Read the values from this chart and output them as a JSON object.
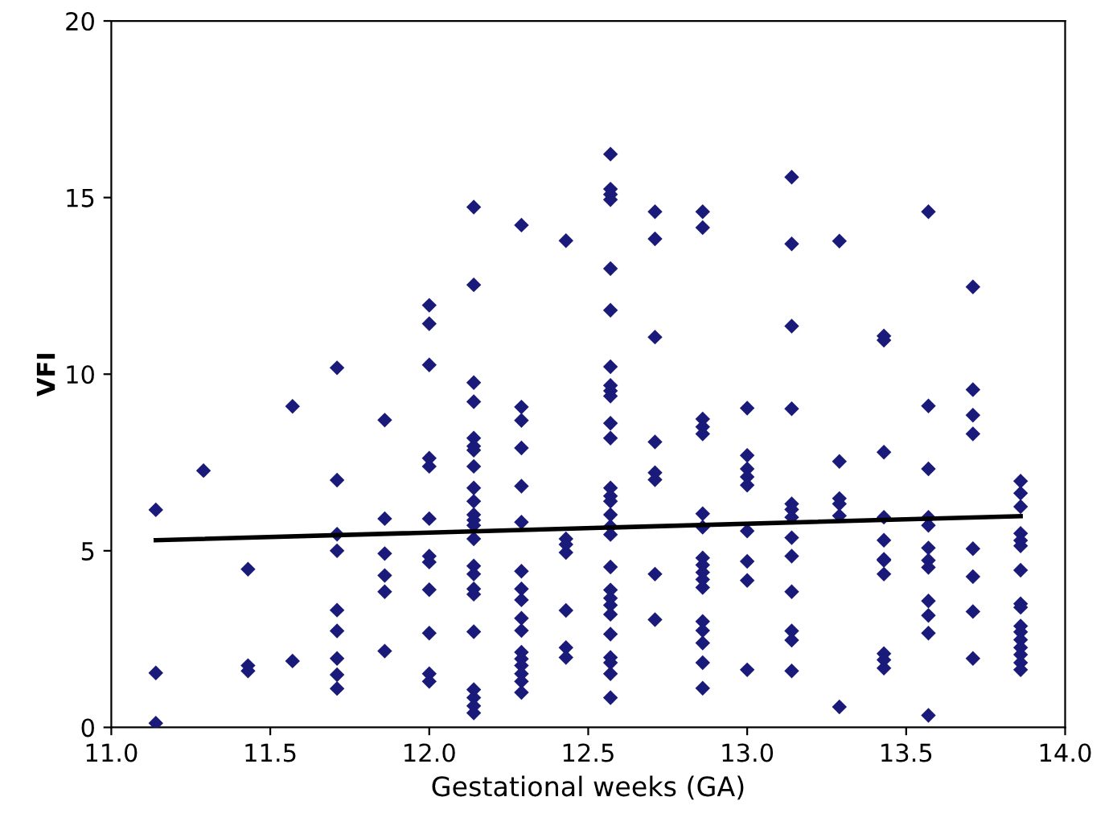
{
  "chart_data": {
    "type": "scatter",
    "xlabel": "Gestational weeks (GA)",
    "ylabel": "VFI",
    "xlim": [
      11.0,
      14.0
    ],
    "ylim": [
      0,
      20
    ],
    "xticks": [
      {
        "value": 11.0,
        "label": "11.0"
      },
      {
        "value": 11.5,
        "label": "11.5"
      },
      {
        "value": 12.0,
        "label": "12.0"
      },
      {
        "value": 12.5,
        "label": "12.5"
      },
      {
        "value": 13.0,
        "label": "13.0"
      },
      {
        "value": 13.5,
        "label": "13.5"
      },
      {
        "value": 14.0,
        "label": "14.0"
      }
    ],
    "yticks": [
      0,
      5,
      10,
      15,
      20
    ],
    "grid": false,
    "legend": false,
    "marker": "diamond",
    "series": [
      {
        "color": "#1a1a7a",
        "x": [
          11.14,
          11.14,
          11.14,
          11.29,
          11.43,
          11.43,
          11.43,
          11.57,
          11.57,
          11.71,
          11.71,
          11.71,
          11.71,
          11.71,
          11.71,
          11.71,
          11.71,
          11.71,
          11.86,
          11.86,
          11.86,
          11.86,
          11.86,
          11.86,
          12.0,
          12.0,
          12.0,
          12.0,
          12.0,
          12.0,
          12.0,
          12.0,
          12.0,
          12.0,
          12.0,
          12.0,
          12.14,
          12.14,
          12.14,
          12.14,
          12.14,
          12.14,
          12.14,
          12.14,
          12.14,
          12.14,
          12.14,
          12.14,
          12.14,
          12.14,
          12.14,
          12.14,
          12.14,
          12.14,
          12.14,
          12.14,
          12.14,
          12.14,
          12.14,
          12.29,
          12.29,
          12.29,
          12.29,
          12.29,
          12.29,
          12.29,
          12.29,
          12.29,
          12.29,
          12.29,
          12.29,
          12.29,
          12.29,
          12.29,
          12.29,
          12.29,
          12.43,
          12.43,
          12.43,
          12.43,
          12.43,
          12.43,
          12.43,
          12.57,
          12.57,
          12.57,
          12.57,
          12.57,
          12.57,
          12.57,
          12.57,
          12.57,
          12.57,
          12.57,
          12.57,
          12.57,
          12.57,
          12.57,
          12.57,
          12.57,
          12.57,
          12.57,
          12.57,
          12.57,
          12.57,
          12.57,
          12.57,
          12.57,
          12.57,
          12.57,
          12.57,
          12.71,
          12.71,
          12.71,
          12.71,
          12.71,
          12.71,
          12.71,
          12.71,
          12.86,
          12.86,
          12.86,
          12.86,
          12.86,
          12.86,
          12.86,
          12.86,
          12.86,
          12.86,
          12.86,
          12.86,
          12.86,
          12.86,
          12.86,
          12.86,
          12.86,
          13.0,
          13.0,
          13.0,
          13.0,
          13.0,
          13.0,
          13.0,
          13.0,
          13.0,
          13.14,
          13.14,
          13.14,
          13.14,
          13.14,
          13.14,
          13.14,
          13.14,
          13.14,
          13.14,
          13.14,
          13.14,
          13.14,
          13.29,
          13.29,
          13.29,
          13.29,
          13.29,
          13.29,
          13.43,
          13.43,
          13.43,
          13.43,
          13.43,
          13.43,
          13.43,
          13.43,
          13.43,
          13.43,
          13.43,
          13.57,
          13.57,
          13.57,
          13.57,
          13.57,
          13.57,
          13.57,
          13.57,
          13.57,
          13.57,
          13.57,
          13.57,
          13.71,
          13.71,
          13.71,
          13.71,
          13.71,
          13.71,
          13.71,
          13.71,
          13.86,
          13.86,
          13.86,
          13.86,
          13.86,
          13.86,
          13.86,
          13.86,
          13.86,
          13.86,
          13.86,
          13.86,
          13.86,
          13.86,
          13.86,
          13.86
        ],
        "values": [
          6.16,
          1.54,
          0.12,
          7.27,
          4.48,
          1.75,
          1.6,
          9.09,
          1.88,
          10.18,
          7.0,
          5.47,
          5.0,
          3.32,
          2.73,
          1.95,
          1.49,
          1.1,
          8.7,
          5.91,
          4.92,
          4.3,
          3.84,
          2.16,
          11.95,
          11.43,
          10.26,
          7.62,
          7.39,
          5.91,
          4.85,
          4.68,
          3.9,
          2.67,
          1.52,
          1.3,
          14.73,
          12.53,
          9.76,
          9.22,
          8.19,
          7.96,
          7.85,
          7.39,
          6.78,
          6.4,
          6.02,
          5.87,
          5.72,
          5.34,
          4.57,
          4.34,
          3.92,
          3.77,
          2.71,
          1.07,
          0.84,
          0.61,
          0.41,
          14.22,
          9.07,
          8.69,
          7.91,
          6.83,
          5.81,
          4.42,
          3.92,
          3.61,
          3.09,
          2.74,
          2.13,
          1.94,
          1.75,
          1.52,
          1.3,
          0.99,
          13.78,
          5.34,
          5.18,
          4.95,
          3.31,
          2.26,
          1.98,
          16.23,
          15.24,
          15.09,
          14.94,
          12.99,
          11.81,
          10.21,
          9.68,
          9.53,
          9.38,
          8.61,
          8.19,
          6.78,
          6.55,
          6.4,
          6.02,
          5.69,
          5.46,
          4.54,
          3.89,
          3.66,
          3.46,
          3.2,
          2.64,
          1.98,
          1.83,
          1.52,
          0.84,
          14.6,
          13.83,
          11.05,
          8.08,
          7.21,
          7.01,
          4.34,
          3.05,
          1.11,
          14.6,
          14.15,
          8.73,
          8.51,
          8.31,
          6.05,
          5.67,
          4.8,
          4.6,
          4.39,
          4.19,
          3.96,
          3.0,
          2.74,
          2.39,
          1.83,
          1.63,
          9.04,
          7.7,
          7.32,
          7.09,
          6.86,
          5.56,
          4.7,
          4.16,
          2.73,
          15.58,
          13.69,
          11.36,
          9.02,
          6.33,
          6.17,
          5.95,
          5.37,
          4.85,
          3.84,
          2.47,
          1.6,
          0.58,
          13.77,
          7.53,
          6.48,
          6.33,
          5.99,
          4.73,
          11.08,
          10.96,
          7.79,
          5.95,
          5.3,
          4.76,
          4.34,
          2.09,
          1.91,
          1.68,
          0.34,
          14.6,
          9.1,
          7.32,
          5.95,
          5.72,
          5.08,
          4.73,
          4.53,
          3.58,
          3.17,
          2.67,
          1.95,
          12.47,
          9.56,
          8.84,
          8.31,
          5.06,
          4.27,
          3.28,
          2.87,
          6.97,
          6.63,
          6.25,
          5.49,
          5.29,
          5.14,
          4.45,
          3.5,
          3.4,
          2.7,
          2.48,
          2.26,
          2.06,
          1.83,
          1.63
        ]
      },
      {
        "type": "line",
        "color": "#000000",
        "x": [
          11.14,
          13.86
        ],
        "values": [
          5.3,
          5.98
        ],
        "line_style": "solid",
        "marker": "none"
      }
    ]
  }
}
